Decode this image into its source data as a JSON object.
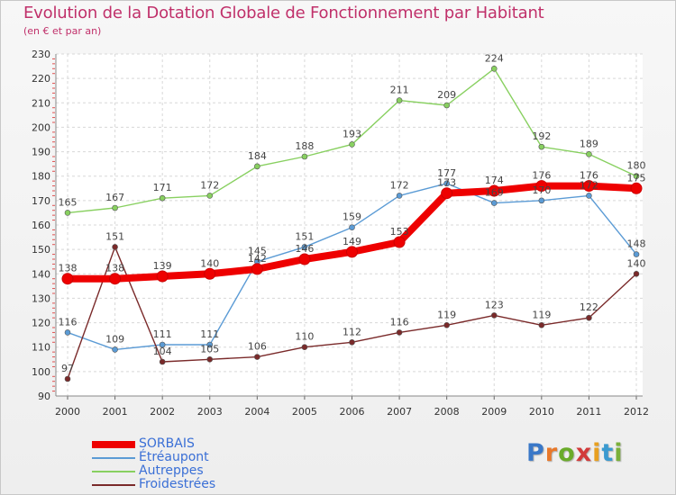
{
  "header": {
    "title": "Evolution de la Dotation Globale de Fonctionnement par Habitant",
    "subtitle": "(en € et par an)"
  },
  "logo": {
    "text": "Proxiti",
    "colors": [
      "#3a78c8",
      "#e8782a",
      "#6aab2a",
      "#d23a3a",
      "#e8a020",
      "#3a9ad0",
      "#7ab03a"
    ]
  },
  "chart_data": {
    "type": "line",
    "title": "Evolution de la Dotation Globale de Fonctionnement par Habitant",
    "subtitle": "(en € et par an)",
    "xlabel": "",
    "ylabel": "",
    "x": [
      "2000",
      "2001",
      "2002",
      "2003",
      "2004",
      "2005",
      "2006",
      "2007",
      "2008",
      "2009",
      "2010",
      "2011",
      "2012"
    ],
    "ylim": [
      90,
      230
    ],
    "yticks": [
      90,
      100,
      110,
      120,
      130,
      140,
      150,
      160,
      170,
      180,
      190,
      200,
      210,
      220,
      230
    ],
    "grid": true,
    "legend_position": "bottom-left",
    "series": [
      {
        "name": "SORBAIS",
        "color": "#ee0000",
        "emphasis": true,
        "values": [
          138,
          138,
          139,
          140,
          142,
          146,
          149,
          153,
          173,
          174,
          176,
          176,
          175
        ]
      },
      {
        "name": "Étréaupont",
        "color": "#5b9bd5",
        "emphasis": false,
        "values": [
          116,
          109,
          111,
          111,
          145,
          151,
          159,
          172,
          177,
          169,
          170,
          172,
          148
        ]
      },
      {
        "name": "Autreppes",
        "color": "#88d060",
        "emphasis": false,
        "values": [
          165,
          167,
          171,
          172,
          184,
          188,
          193,
          211,
          209,
          224,
          192,
          189,
          180
        ]
      },
      {
        "name": "Froidestrées",
        "color": "#7a2a2a",
        "emphasis": false,
        "values": [
          97,
          151,
          104,
          105,
          106,
          110,
          112,
          116,
          119,
          123,
          119,
          122,
          140
        ]
      }
    ]
  }
}
